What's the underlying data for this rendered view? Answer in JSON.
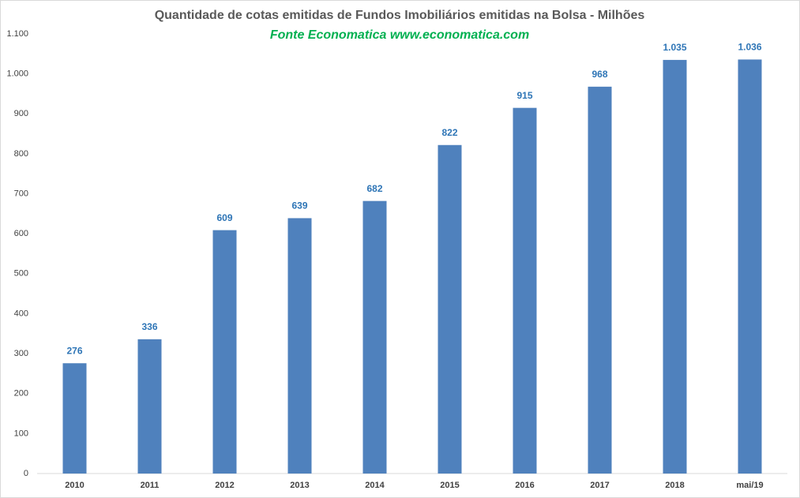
{
  "chart_data": {
    "type": "bar",
    "title": "Quantidade de cotas emitidas de Fundos Imobiliários emitidas na Bolsa - Milhões",
    "subtitle": "Fonte Economatica www.economatica.com",
    "categories": [
      "2010",
      "2011",
      "2012",
      "2013",
      "2014",
      "2015",
      "2016",
      "2017",
      "2018",
      "mai/19"
    ],
    "values": [
      276,
      336,
      609,
      639,
      682,
      822,
      915,
      968,
      1035,
      1036
    ],
    "value_labels": [
      "276",
      "336",
      "609",
      "639",
      "682",
      "822",
      "915",
      "968",
      "1.035",
      "1.036"
    ],
    "color": "#4f81bd",
    "ylim": [
      0,
      1100
    ],
    "yticks": [
      0,
      100,
      200,
      300,
      400,
      500,
      600,
      700,
      800,
      900,
      {
        "value": 1000,
        "label": "1.000"
      },
      {
        "value": 1100,
        "label": "1.100"
      }
    ],
    "grid": false
  }
}
